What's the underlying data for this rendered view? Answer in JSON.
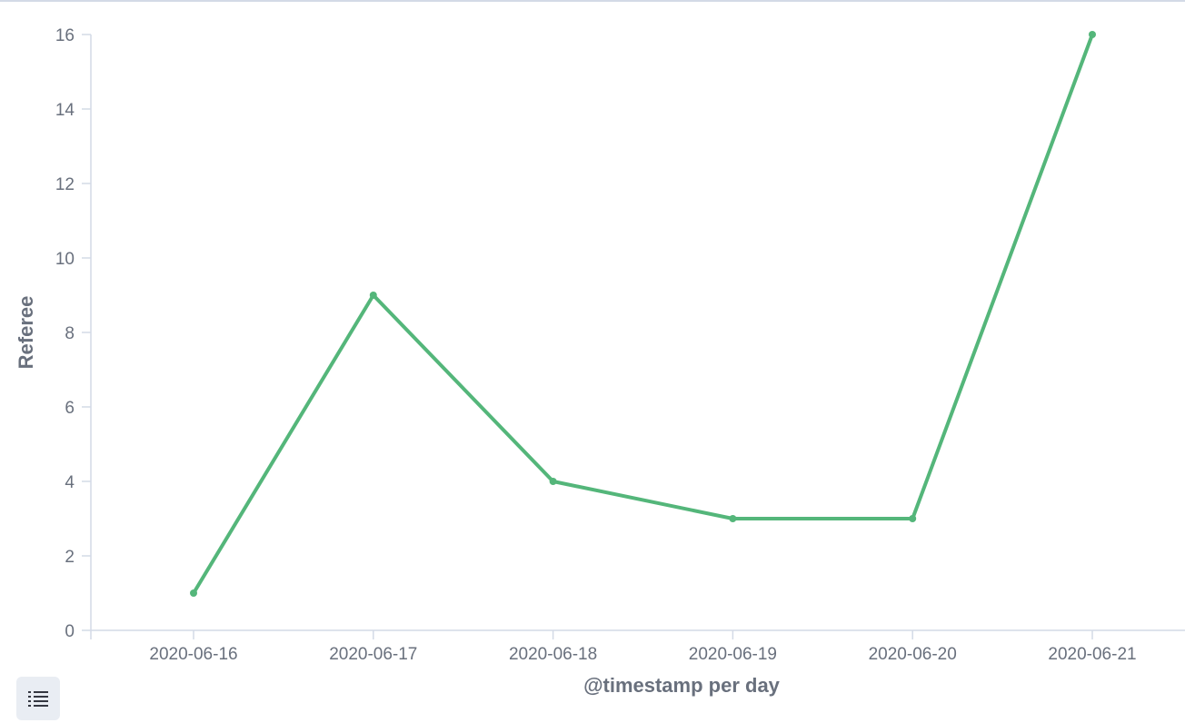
{
  "chart_data": {
    "type": "line",
    "x": [
      "2020-06-16",
      "2020-06-17",
      "2020-06-18",
      "2020-06-19",
      "2020-06-20",
      "2020-06-21"
    ],
    "series": [
      {
        "values": [
          1,
          9,
          4,
          3,
          3,
          16
        ]
      }
    ],
    "xlabel": "@timestamp per day",
    "ylabel": "Referee",
    "ylim": [
      0,
      16
    ],
    "yticks": [
      0,
      2,
      4,
      6,
      8,
      10,
      12,
      14,
      16
    ],
    "grid": false,
    "legend": "hidden",
    "color": "#54b67a",
    "axis_color": "#d3dae6",
    "text_color": "#69707d"
  },
  "legend_toggle": {
    "icon": "list-icon"
  }
}
